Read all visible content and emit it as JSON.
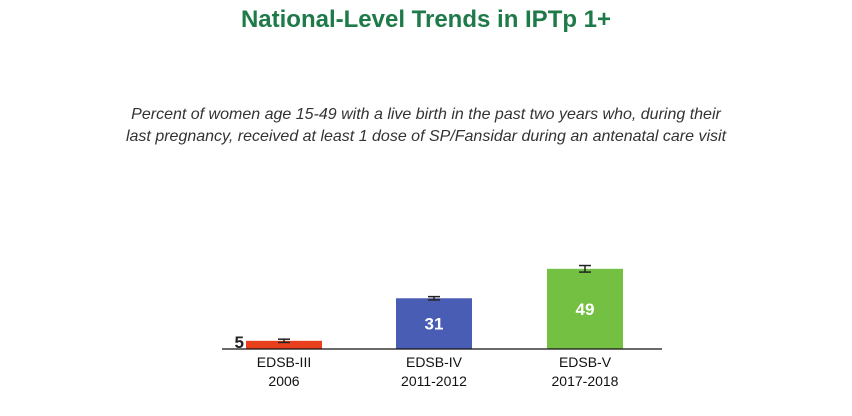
{
  "title": "National-Level Trends in IPTp 1+",
  "subtitle_lines": [
    "Percent of women age 15-49 with a live birth in the past two years who, during their",
    "last pregnancy, received at least 1 dose of SP/Fansidar during an antenatal care visit"
  ],
  "chart_data": {
    "type": "bar",
    "title": "National-Level Trends in IPTp 1+",
    "subtitle": "Percent of women age 15-49 with a live birth in the past two years who, during their last pregnancy, received at least 1 dose of SP/Fansidar during an antenatal care visit",
    "categories": [
      [
        "EDSB-III",
        "2006"
      ],
      [
        "EDSB-IV",
        "2011-2012"
      ],
      [
        "EDSB-V",
        "2017-2018"
      ]
    ],
    "values": [
      5,
      31,
      49
    ],
    "labels": [
      "5",
      "31",
      "49"
    ],
    "error_bars": [
      [
        4,
        6
      ],
      [
        30,
        32
      ],
      [
        47,
        51
      ]
    ],
    "colors": [
      "#e8401c",
      "#4a5db5",
      "#74c043"
    ],
    "label_colors": [
      "#222222",
      "#ffffff",
      "#ffffff"
    ],
    "ylim": [
      0,
      56
    ],
    "grid": false,
    "xlabel": "",
    "ylabel": ""
  }
}
